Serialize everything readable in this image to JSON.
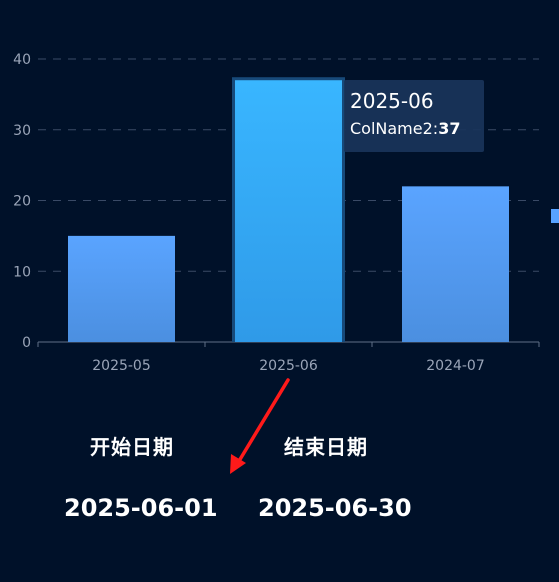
{
  "chart_data": {
    "type": "bar",
    "categories": [
      "2025-05",
      "2025-06",
      "2024-07"
    ],
    "series": [
      {
        "name": "ColName2",
        "values": [
          15,
          37,
          22
        ]
      }
    ],
    "ylim": [
      0,
      40
    ],
    "yticks": [
      0,
      10,
      20,
      30,
      40
    ],
    "grid": true,
    "highlight_index": 1,
    "colors": {
      "background": "#001129",
      "bar": "#5aa4ff",
      "bar_highlight": "#33b3ff",
      "grid": "#3a4a66",
      "axis_text": "#9aa5b8",
      "arrow": "#ff1a1a"
    }
  },
  "tooltip": {
    "title": "2025-06",
    "series_name": "ColName2",
    "value_text": "37"
  },
  "legend": {
    "marker_color": "#58a2ff"
  },
  "date_range": {
    "start_label": "开始日期",
    "end_label": "结束日期",
    "start_value": "2025-06-01",
    "end_value": "2025-06-30"
  }
}
